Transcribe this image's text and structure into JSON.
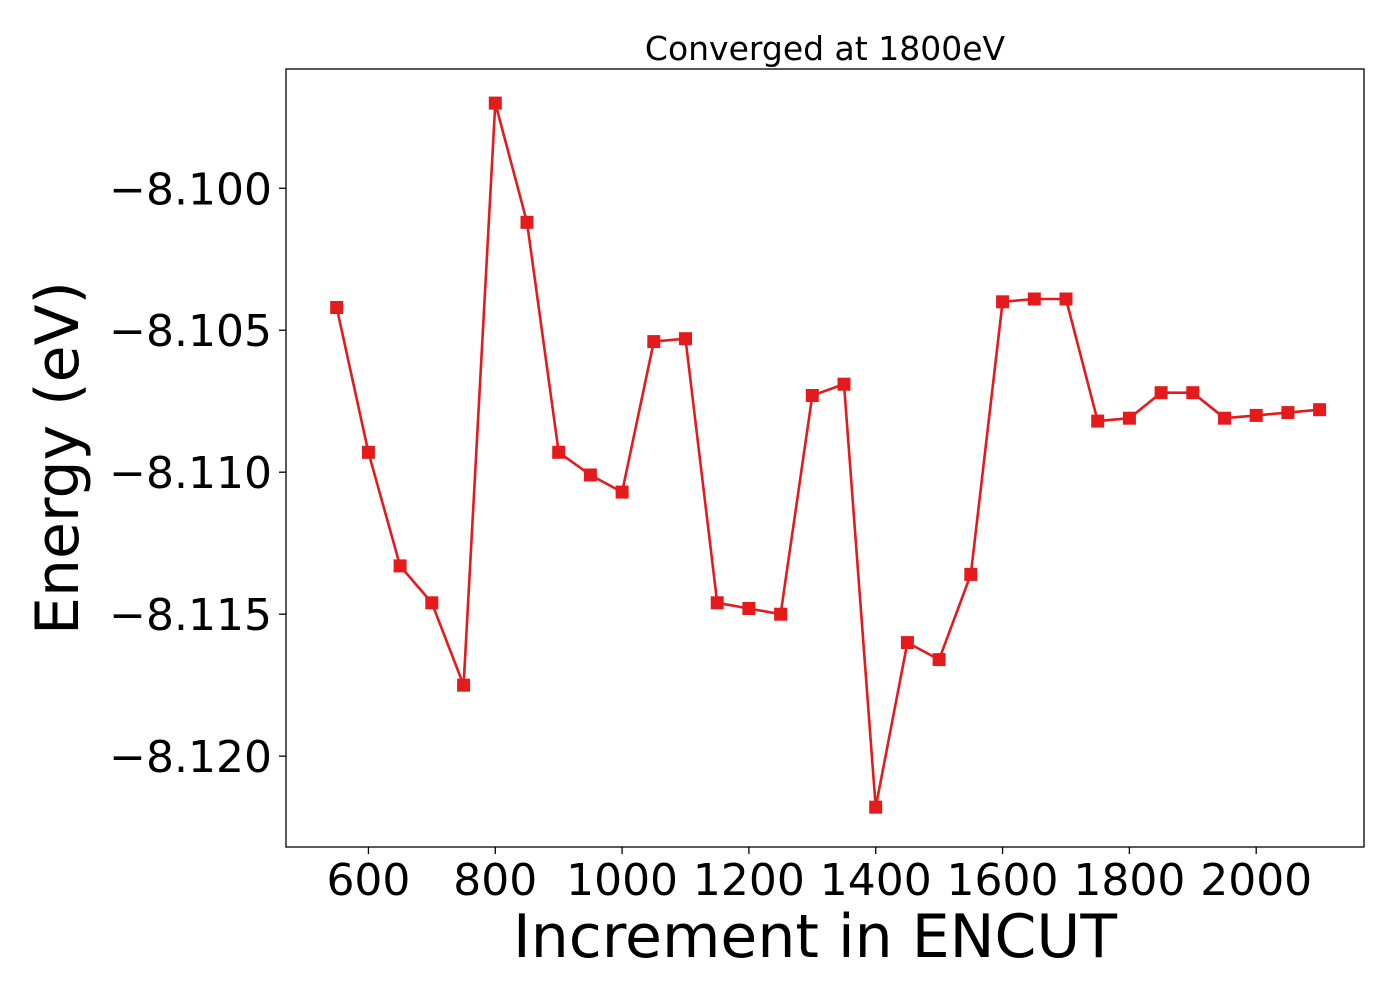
{
  "chart_data": {
    "type": "line",
    "title": "Converged at 1800eV",
    "xlabel": "Increment in ENCUT",
    "ylabel": "Energy (eV)",
    "xlim": [
      470,
      2170
    ],
    "ylim": [
      -8.1232,
      -8.0958
    ],
    "xticks": [
      600,
      800,
      1000,
      1200,
      1400,
      1600,
      1800,
      2000
    ],
    "xtick_labels": [
      "600",
      "800",
      "1000",
      "1200",
      "1400",
      "1600",
      "1800",
      "2000"
    ],
    "yticks": [
      -8.1,
      -8.105,
      -8.11,
      -8.115,
      -8.12
    ],
    "ytick_labels": [
      "−8.100",
      "−8.105",
      "−8.110",
      "−8.115",
      "−8.120"
    ],
    "grid": false,
    "series": [
      {
        "color": "#e41a1c",
        "marker": "square",
        "x": [
          550,
          600,
          650,
          700,
          750,
          800,
          850,
          900,
          950,
          1000,
          1050,
          1100,
          1150,
          1200,
          1250,
          1300,
          1350,
          1400,
          1450,
          1500,
          1550,
          1600,
          1650,
          1700,
          1750,
          1800,
          1850,
          1900,
          1950,
          2000,
          2050,
          2100
        ],
        "y": [
          -8.1042,
          -8.1093,
          -8.1133,
          -8.1146,
          -8.1175,
          -8.097,
          -8.1012,
          -8.1093,
          -8.1101,
          -8.1107,
          -8.1054,
          -8.1053,
          -8.1146,
          -8.1148,
          -8.115,
          -8.1073,
          -8.1069,
          -8.1218,
          -8.116,
          -8.1166,
          -8.1136,
          -8.104,
          -8.1039,
          -8.1039,
          -8.1082,
          -8.1081,
          -8.1072,
          -8.1072,
          -8.1081,
          -8.108,
          -8.1079,
          -8.1078
        ]
      }
    ]
  }
}
